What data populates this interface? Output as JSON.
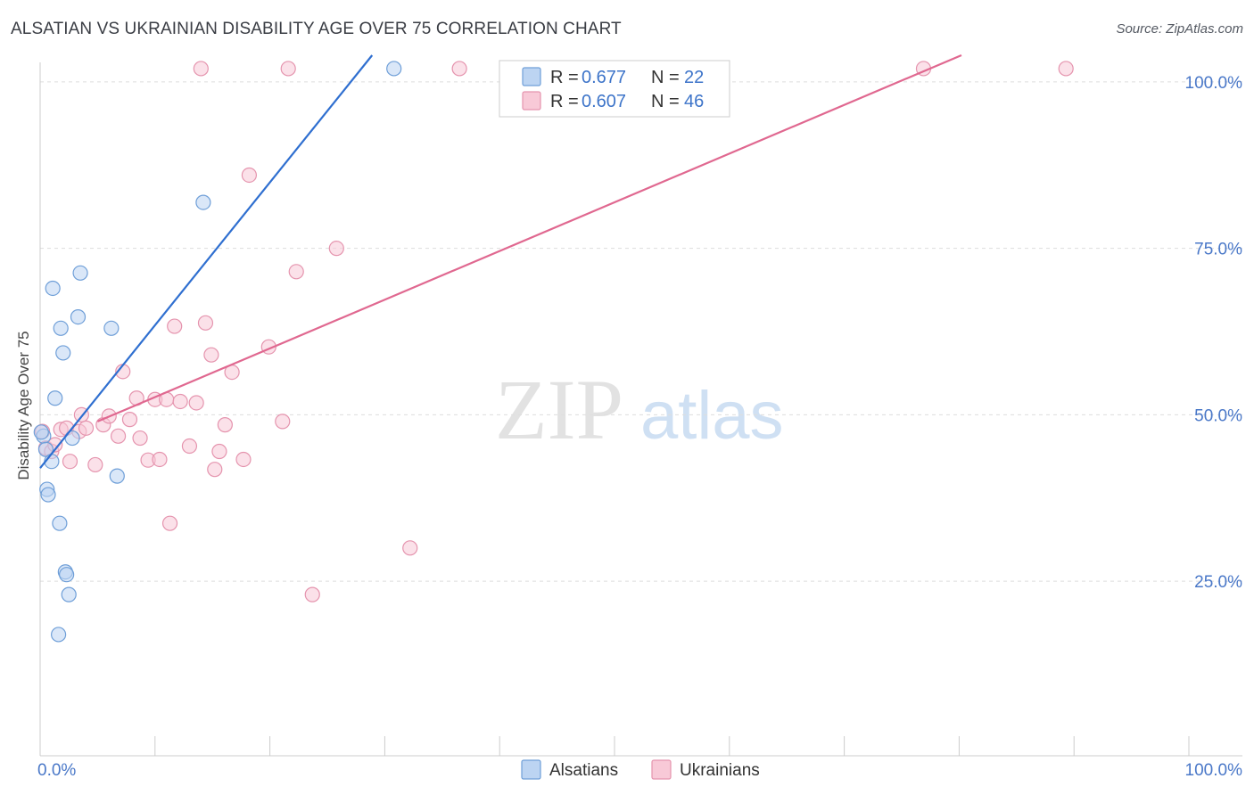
{
  "header": {
    "title": "ALSATIAN VS UKRAINIAN DISABILITY AGE OVER 75 CORRELATION CHART",
    "source": "Source: ZipAtlas.com"
  },
  "watermark": {
    "zip": "ZIP",
    "atlas": "atlas"
  },
  "legend": {
    "r_label": "R =",
    "n_label": "N =",
    "entries": [
      {
        "r": "0.677",
        "n": "22"
      },
      {
        "r": "0.607",
        "n": "46"
      }
    ]
  },
  "colors": {
    "alsatian_fill": "#bcd4f2",
    "alsatian_stroke": "#6f9fd8",
    "alsatian_line": "#2f6fd0",
    "ukrainian_fill": "#f8c9d7",
    "ukrainian_stroke": "#e594ae",
    "ukrainian_line": "#e06890",
    "grid": "#dddddd",
    "axis_label": "#4a78c8"
  },
  "chart_data": {
    "type": "scatter",
    "title": "ALSATIAN VS UKRAINIAN DISABILITY AGE OVER 75 CORRELATION CHART",
    "xlabel": "",
    "ylabel": "Disability Age Over 75",
    "xlim": [
      0,
      100
    ],
    "ylim": [
      2,
      104
    ],
    "x_tick_labels": [
      "0.0%",
      "100.0%"
    ],
    "y_ticks": [
      25,
      50,
      75,
      100
    ],
    "y_tick_labels": [
      "25.0%",
      "50.0%",
      "75.0%",
      "100.0%"
    ],
    "legend_position": "top-center",
    "series": [
      {
        "name": "Alsatians",
        "r": 0.677,
        "n": 22,
        "points": [
          [
            0.3,
            46.8
          ],
          [
            0.5,
            44.8
          ],
          [
            0.6,
            38.8
          ],
          [
            0.7,
            38.0
          ],
          [
            1.0,
            43.0
          ],
          [
            1.1,
            69.0
          ],
          [
            1.3,
            52.5
          ],
          [
            1.6,
            17.0
          ],
          [
            1.7,
            33.7
          ],
          [
            1.8,
            63.0
          ],
          [
            2.0,
            59.3
          ],
          [
            2.2,
            26.4
          ],
          [
            2.3,
            26.0
          ],
          [
            2.5,
            23.0
          ],
          [
            2.8,
            46.5
          ],
          [
            3.3,
            64.7
          ],
          [
            3.5,
            71.3
          ],
          [
            6.2,
            63.0
          ],
          [
            6.7,
            40.8
          ],
          [
            14.2,
            81.9
          ],
          [
            30.8,
            102.0
          ],
          [
            0.1,
            47.4
          ]
        ],
        "trend": {
          "x": [
            0.0,
            28.9
          ],
          "y": [
            42.0,
            104.0
          ]
        }
      },
      {
        "name": "Ukrainians",
        "r": 0.607,
        "n": 46,
        "points": [
          [
            0.2,
            47.5
          ],
          [
            0.5,
            45.0
          ],
          [
            1.0,
            44.5
          ],
          [
            1.3,
            45.5
          ],
          [
            1.8,
            47.8
          ],
          [
            2.3,
            48.0
          ],
          [
            2.6,
            43.0
          ],
          [
            3.4,
            47.5
          ],
          [
            3.6,
            50.0
          ],
          [
            4.0,
            48.0
          ],
          [
            4.8,
            42.5
          ],
          [
            5.5,
            48.5
          ],
          [
            6.0,
            49.8
          ],
          [
            6.8,
            46.8
          ],
          [
            7.2,
            56.5
          ],
          [
            7.8,
            49.3
          ],
          [
            8.4,
            52.5
          ],
          [
            8.7,
            46.5
          ],
          [
            9.4,
            43.2
          ],
          [
            10.0,
            52.3
          ],
          [
            10.4,
            43.3
          ],
          [
            11.0,
            52.3
          ],
          [
            11.3,
            33.7
          ],
          [
            11.7,
            63.3
          ],
          [
            12.2,
            52.0
          ],
          [
            13.0,
            45.3
          ],
          [
            13.6,
            51.8
          ],
          [
            14.0,
            102.0
          ],
          [
            14.4,
            63.8
          ],
          [
            14.9,
            59.0
          ],
          [
            15.2,
            41.8
          ],
          [
            15.6,
            44.5
          ],
          [
            16.1,
            48.5
          ],
          [
            16.7,
            56.4
          ],
          [
            17.7,
            43.3
          ],
          [
            18.2,
            86.0
          ],
          [
            19.9,
            60.2
          ],
          [
            21.1,
            49.0
          ],
          [
            21.6,
            102.0
          ],
          [
            22.3,
            71.5
          ],
          [
            23.7,
            23.0
          ],
          [
            25.8,
            75.0
          ],
          [
            32.2,
            30.0
          ],
          [
            36.5,
            102.0
          ],
          [
            76.9,
            102.0
          ],
          [
            89.3,
            102.0
          ]
        ],
        "trend": {
          "x": [
            5.0,
            80.2
          ],
          "y": [
            49.0,
            104.0
          ]
        }
      }
    ]
  },
  "bottom_legend": {
    "items": [
      "Alsatians",
      "Ukrainians"
    ]
  }
}
